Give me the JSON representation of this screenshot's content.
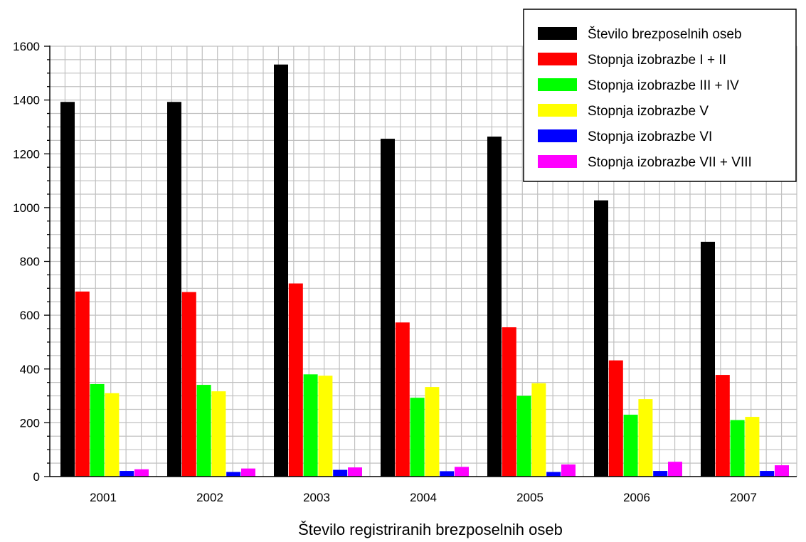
{
  "chart_data": {
    "type": "bar",
    "title": "",
    "xlabel": "Število registriranih brezposelnih oseb",
    "ylabel": "",
    "ylim": [
      0,
      1600
    ],
    "yticks": [
      0,
      200,
      400,
      600,
      800,
      1000,
      1200,
      1400,
      1600
    ],
    "grid": true,
    "legend_position": "top-right",
    "categories": [
      "2001",
      "2002",
      "2003",
      "2004",
      "2005",
      "2006",
      "2007"
    ],
    "series": [
      {
        "name": "Število brezposelnih oseb",
        "color": "#000000",
        "values": [
          1393,
          1393,
          1532,
          1256,
          1264,
          1027,
          873
        ]
      },
      {
        "name": "Stopnja izobrazbe I + II",
        "color": "#ff0000",
        "values": [
          688,
          686,
          718,
          573,
          555,
          432,
          378
        ]
      },
      {
        "name": "Stopnja izobrazbe III + IV",
        "color": "#00ff00",
        "values": [
          344,
          341,
          380,
          293,
          300,
          230,
          210
        ]
      },
      {
        "name": "Stopnja izobrazbe V",
        "color": "#ffff00",
        "values": [
          310,
          317,
          375,
          333,
          347,
          288,
          222
        ]
      },
      {
        "name": "Stopnja izobrazbe VI",
        "color": "#0000ff",
        "values": [
          21,
          17,
          25,
          20,
          17,
          21,
          21
        ]
      },
      {
        "name": "Stopnja izobrazbe VII + VIII",
        "color": "#ff00ff",
        "values": [
          27,
          30,
          34,
          36,
          45,
          55,
          42
        ]
      }
    ]
  }
}
